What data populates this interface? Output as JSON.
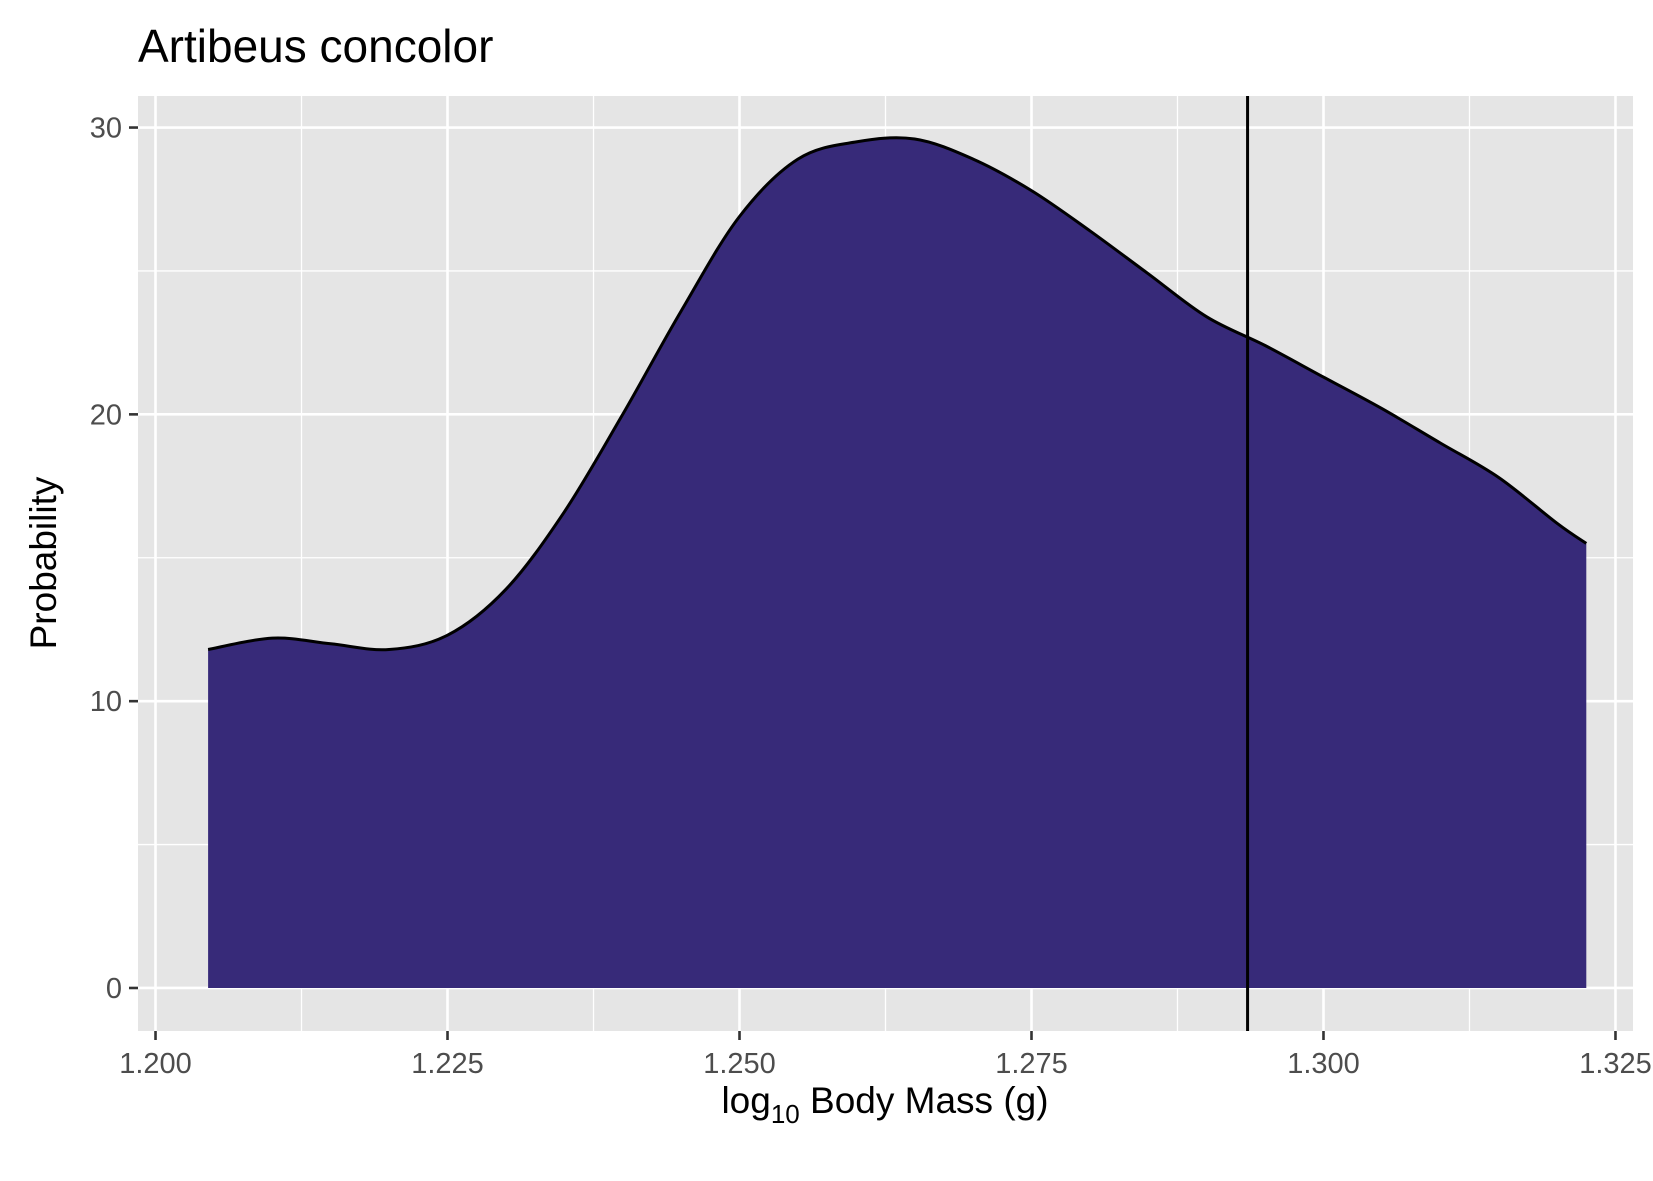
{
  "chart_data": {
    "type": "area",
    "title": "Artibeus concolor",
    "xlabel": {
      "prefix": "log",
      "subscript": "10",
      "suffix": " Body Mass (g)"
    },
    "ylabel": "Probability",
    "xlim": [
      1.1985,
      1.3265
    ],
    "ylim": [
      -1.5,
      31.1
    ],
    "x_ticks": [
      1.2,
      1.225,
      1.25,
      1.275,
      1.3,
      1.325
    ],
    "x_tick_labels": [
      "1.200",
      "1.225",
      "1.250",
      "1.275",
      "1.300",
      "1.325"
    ],
    "y_ticks": [
      0,
      10,
      20,
      30
    ],
    "y_tick_labels": [
      "0",
      "10",
      "20",
      "30"
    ],
    "grid": true,
    "series": [
      {
        "x": [
          1.2045,
          1.21,
          1.215,
          1.22,
          1.225,
          1.23,
          1.235,
          1.24,
          1.245,
          1.25,
          1.255,
          1.26,
          1.265,
          1.27,
          1.275,
          1.28,
          1.285,
          1.29,
          1.295,
          1.3,
          1.305,
          1.31,
          1.315,
          1.32,
          1.3225
        ],
        "values": [
          11.8,
          12.2,
          12.0,
          11.8,
          12.3,
          13.9,
          16.6,
          20.0,
          23.6,
          26.9,
          28.9,
          29.5,
          29.6,
          28.9,
          27.8,
          26.4,
          24.9,
          23.4,
          22.4,
          21.3,
          20.2,
          19.0,
          17.8,
          16.2,
          15.5
        ],
        "fill": "#372a79",
        "stroke": "#000000"
      }
    ],
    "reference_line_x": 1.2935,
    "colors": {
      "panel": "#e5e5e5",
      "grid": "#ffffff",
      "fill": "#372a79",
      "line": "#000000"
    }
  }
}
